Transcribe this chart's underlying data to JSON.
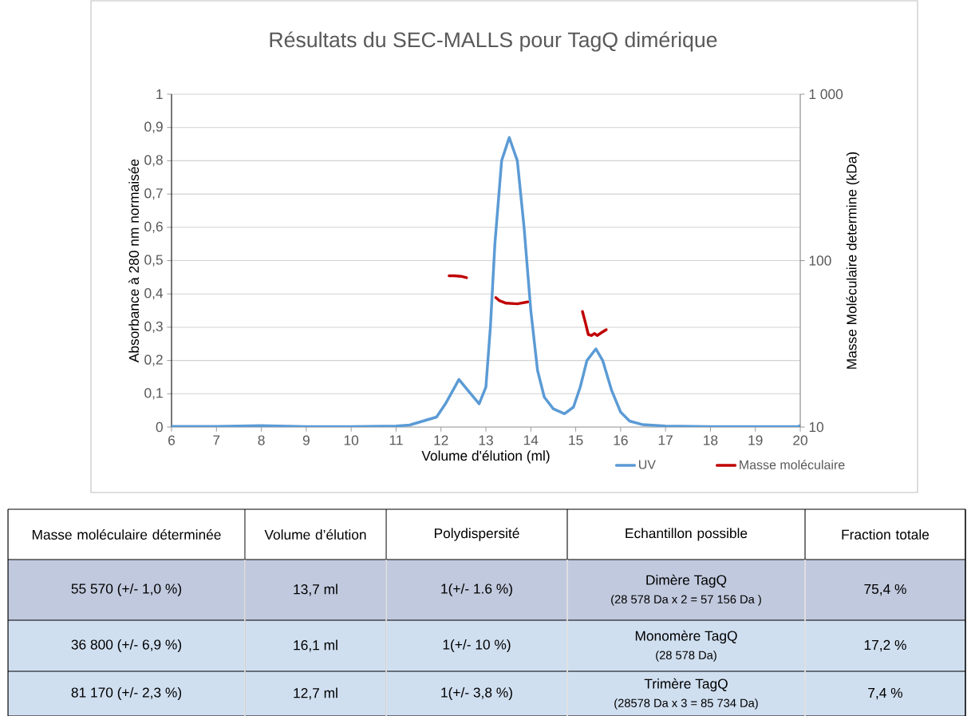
{
  "chart_data": {
    "type": "line",
    "title": "Résultats du SEC-MALLS pour TagQ dimérique",
    "xlabel": "Volume d'élution (ml)",
    "ylabel": "Absorbance à 280 nm normaisée",
    "y2label": "Masse Moléculaire determine (kDa)",
    "xlim": [
      6,
      20
    ],
    "xticks": [
      6,
      7,
      8,
      9,
      10,
      11,
      12,
      13,
      14,
      15,
      16,
      17,
      18,
      19,
      20
    ],
    "ylim": [
      0,
      1
    ],
    "yticks": [
      0,
      {
        "value": 0.1,
        "label": "0,1"
      },
      {
        "value": 0.2,
        "label": "0,2"
      },
      {
        "value": 0.3,
        "label": "0,3"
      },
      {
        "value": 0.4,
        "label": "0,4"
      },
      {
        "value": 0.5,
        "label": "0,5"
      },
      {
        "value": 0.6,
        "label": "0,6"
      },
      {
        "value": 0.7,
        "label": "0,7"
      },
      {
        "value": 0.8,
        "label": "0,8"
      },
      {
        "value": 0.9,
        "label": "0,9"
      },
      1
    ],
    "y2lim": [
      10,
      1000
    ],
    "y2ticks": [
      10,
      100,
      {
        "value": 1000,
        "label": "1 000"
      }
    ],
    "log": "y2",
    "grid": "y",
    "legend": "bottom",
    "series": [
      {
        "name": "UV",
        "color": "#5b9bd5",
        "x": [
          6,
          7,
          8,
          9,
          10,
          11,
          11.3,
          11.6,
          11.9,
          12.1,
          12.4,
          12.6,
          12.85,
          13.0,
          13.1,
          13.2,
          13.35,
          13.52,
          13.7,
          13.85,
          14.0,
          14.15,
          14.3,
          14.5,
          14.75,
          14.95,
          15.1,
          15.25,
          15.45,
          15.6,
          15.8,
          16.0,
          16.2,
          16.5,
          17,
          18,
          19,
          19.95,
          20
        ],
        "values": [
          0.002,
          0.002,
          0.004,
          0.001,
          0.001,
          0.003,
          0.006,
          0.018,
          0.03,
          0.07,
          0.143,
          0.11,
          0.07,
          0.12,
          0.3,
          0.55,
          0.8,
          0.87,
          0.8,
          0.6,
          0.35,
          0.17,
          0.09,
          0.055,
          0.04,
          0.06,
          0.12,
          0.2,
          0.235,
          0.2,
          0.11,
          0.045,
          0.018,
          0.007,
          0.003,
          0.001,
          0.001,
          0.002,
          0.004
        ]
      },
      {
        "name": "Masse moléculaire",
        "color": "#c00000",
        "axis": "y2",
        "x": [
          12.18,
          12.3,
          12.45,
          12.57,
          12.9,
          13.22,
          13.3,
          13.45,
          13.7,
          13.93,
          14.5,
          15.15,
          15.22,
          15.28,
          15.35,
          15.42,
          15.48,
          15.58,
          15.68
        ],
        "values": [
          81,
          81,
          80.5,
          79,
          null,
          60,
          57.5,
          55.5,
          55,
          56.5,
          null,
          49.5,
          42,
          36,
          35.5,
          36.5,
          35.5,
          37,
          38.5
        ]
      }
    ],
    "annotations": [
      "Masse moléculaire déterminée",
      "Volume d’élution",
      "Polydispersité",
      "Echantillon possible",
      "Fraction totale",
      "55 570 (+/- 1,0 %)",
      "13,7 ml",
      "1(+/- 1.6 %)",
      "Dimère TagQ",
      "(28 578 Da x 2 = 57 156 Da )",
      "75,4 %",
      "36 800 (+/- 6,9 %)",
      "16,1 ml",
      "1(+/- 10 %)",
      "Monomère TagQ",
      "(28 578 Da)",
      "17,2 %",
      "81 170 (+/- 2,3 %)",
      "12,7 ml",
      "1(+/- 3,8 %)",
      "Trimère TagQ",
      "(28578 Da x 3 = 85 734 Da)",
      "7,4 %"
    ]
  }
}
